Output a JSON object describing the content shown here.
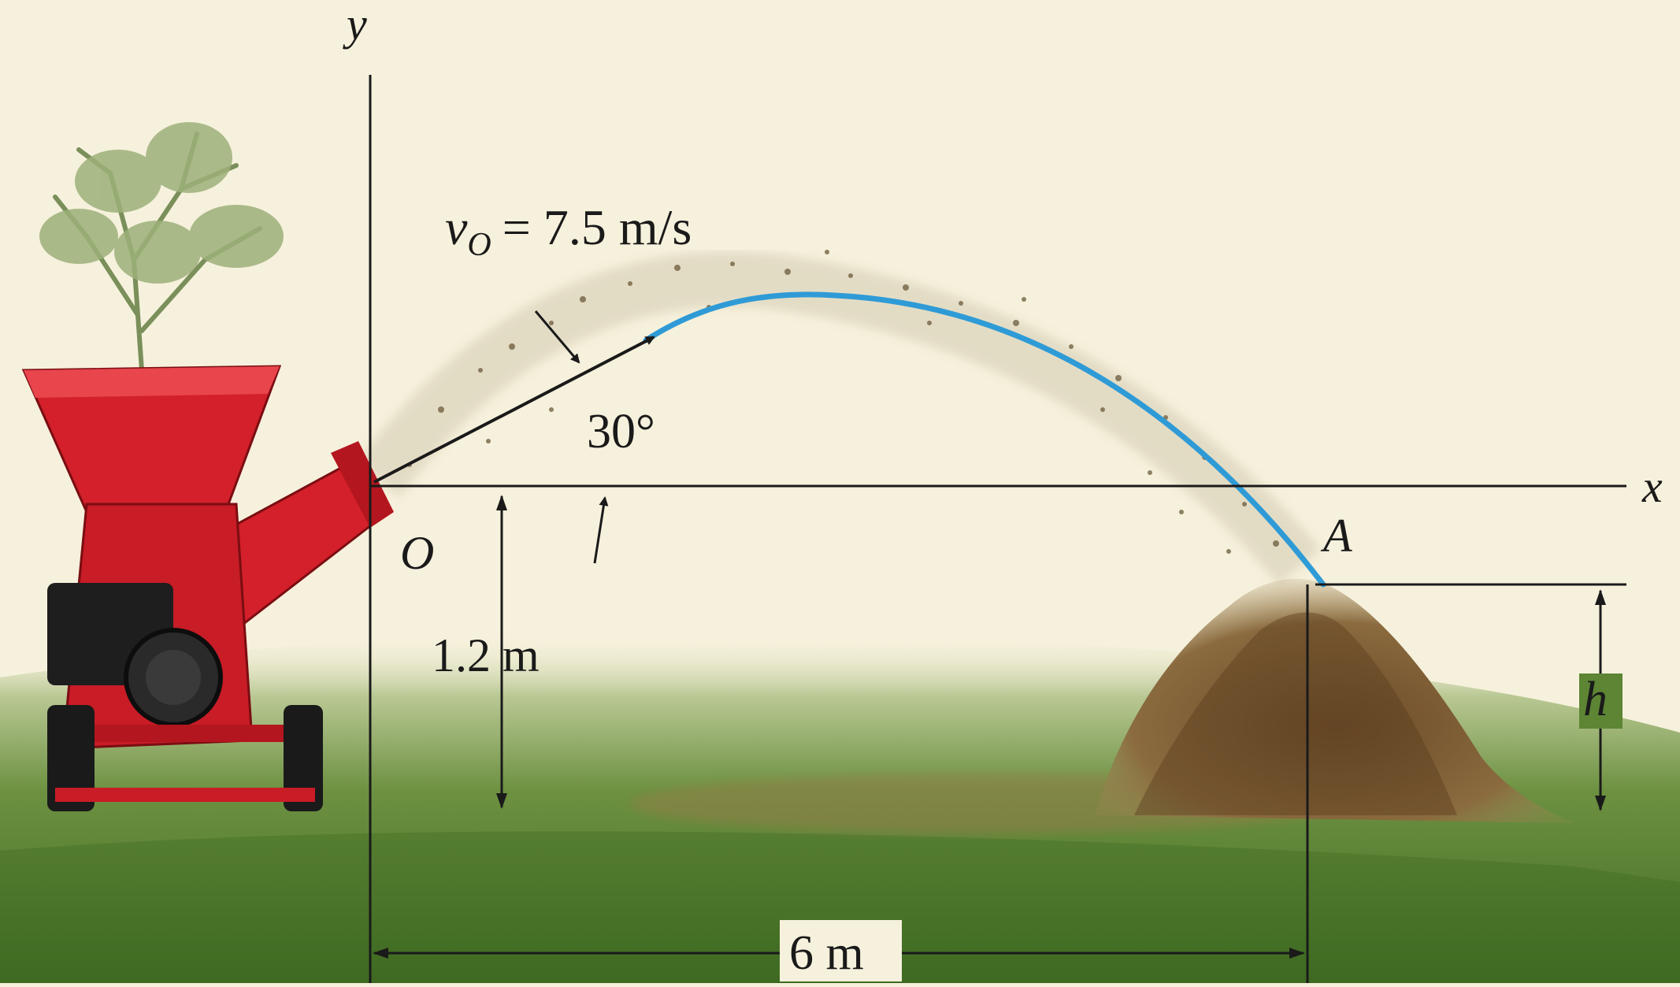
{
  "figure": {
    "axes": {
      "x_label": "x",
      "y_label": "y"
    },
    "labels": {
      "origin": "O",
      "landing_point": "A",
      "velocity_symbol": "v",
      "velocity_subscript": "O",
      "velocity_value": "= 7.5 m/s",
      "angle": "30°",
      "height_launch": "1.2 m",
      "horizontal_distance": "6 m",
      "height_pile": "h"
    },
    "colors": {
      "background": "#f6f1dc",
      "grass": "#4e7a2c",
      "trajectory": "#2f9bd6",
      "chipper_red": "#d3202a",
      "mulch": "#7a5a34"
    },
    "icons": [
      "wood-chipper-icon",
      "shrub-icon",
      "mulch-pile-icon"
    ]
  }
}
